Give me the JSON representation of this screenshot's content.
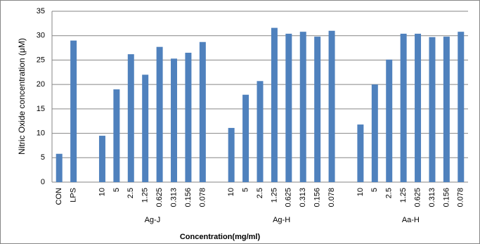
{
  "chart_data": {
    "type": "bar",
    "y_label": "Nitric Oxide concentration (μM)",
    "x_label": "Concentration(mg/ml)",
    "categories": [
      "CON",
      "LPS",
      null,
      "10",
      "5",
      "2.5",
      "1.25",
      "0.625",
      "0.313",
      "0.156",
      "0.078",
      null,
      "10",
      "5",
      "2.5",
      "1.25",
      "0.625",
      "0.313",
      "0.156",
      "0.078",
      null,
      "10",
      "5",
      "2.5",
      "1.25",
      "0.625",
      "0.313",
      "0.156",
      "0.078"
    ],
    "values": [
      5.8,
      29.0,
      null,
      9.5,
      19.0,
      26.2,
      22.0,
      27.7,
      25.3,
      26.5,
      28.7,
      null,
      11.1,
      17.9,
      20.7,
      31.6,
      30.4,
      30.8,
      29.8,
      31.0,
      null,
      11.8,
      20.0,
      25.1,
      30.4,
      30.4,
      29.7,
      29.8,
      30.8
    ],
    "groups": [
      "Ag-J",
      "Ag-H",
      "Aa-H"
    ],
    "color": "#4f81bd",
    "ylim": [
      0,
      35
    ],
    "yticks": [
      0,
      5,
      10,
      15,
      20,
      25,
      30,
      35
    ],
    "grid": true
  }
}
